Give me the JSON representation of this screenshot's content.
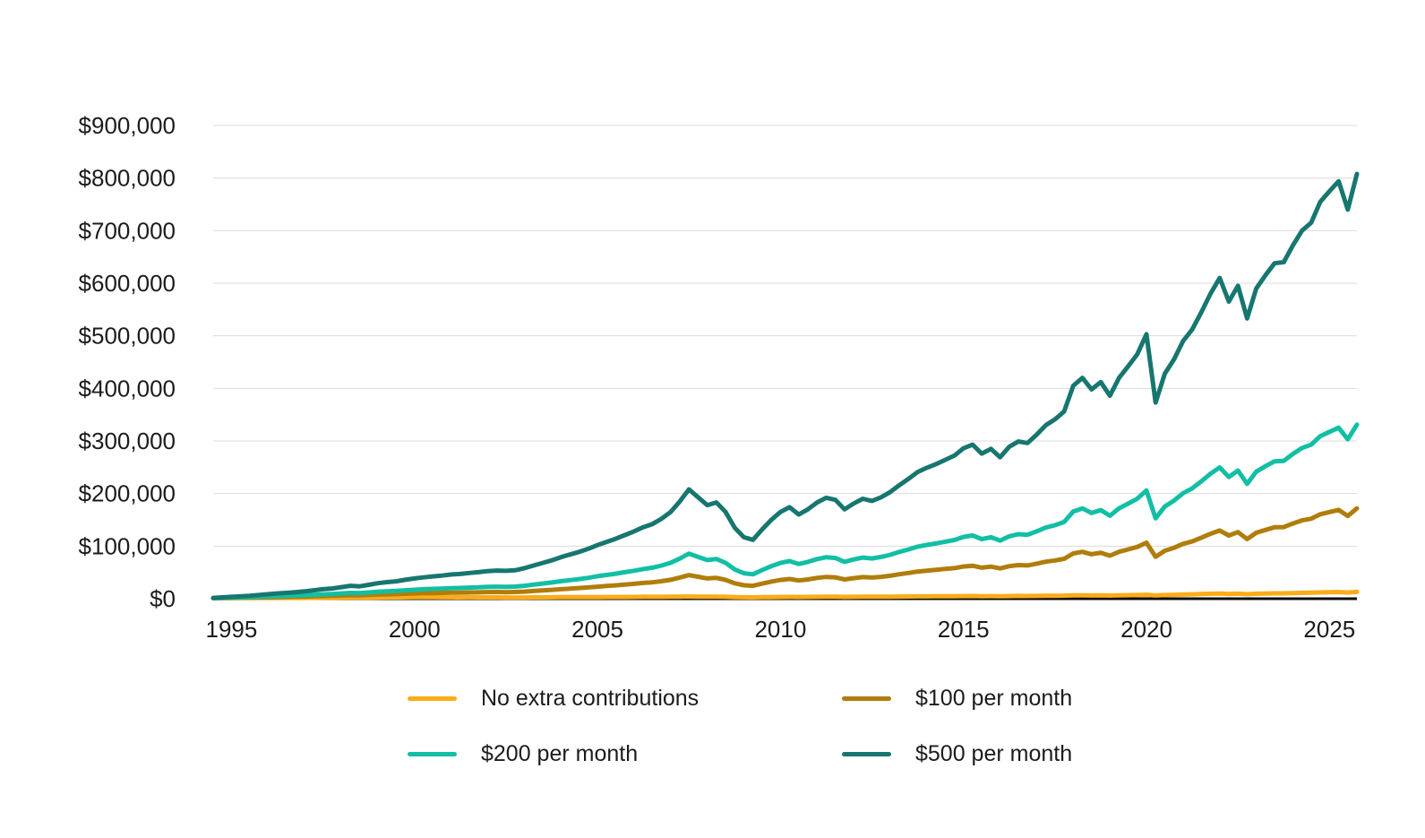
{
  "chart_data": {
    "type": "line",
    "title": "",
    "xlabel": "",
    "ylabel": "",
    "grid": "horizontal",
    "legend_position": "bottom",
    "x_unit": "year",
    "x_start": 1994.5,
    "x_step": 0.25,
    "x_domain": [
      1994.5,
      2025.75
    ],
    "y_domain": [
      0,
      900000
    ],
    "x_ticks": [
      1995,
      2000,
      2005,
      2010,
      2015,
      2020,
      2025
    ],
    "x_tick_labels": [
      "1995",
      "2000",
      "2005",
      "2010",
      "2015",
      "2020",
      "2025"
    ],
    "y_ticks": [
      {
        "value": 0,
        "label": "$0"
      },
      {
        "value": 100000,
        "label": "$100,000"
      },
      {
        "value": 200000,
        "label": "$200,000"
      },
      {
        "value": 300000,
        "label": "$300,000"
      },
      {
        "value": 400000,
        "label": "$400,000"
      },
      {
        "value": 500000,
        "label": "$500,000"
      },
      {
        "value": 600000,
        "label": "$600,000"
      },
      {
        "value": 700000,
        "label": "$700,000"
      },
      {
        "value": 800000,
        "label": "$800,000"
      },
      {
        "value": 900000,
        "label": "$900,000"
      }
    ],
    "colors": {
      "gridline": "#dbdbdb",
      "axis_line": "#0a0a0a",
      "tick_text": "#1c1c1c"
    },
    "series": [
      {
        "name": "No extra contributions",
        "color": "#FBAC18",
        "values": [
          1000,
          1000,
          1100,
          1200,
          1200,
          1300,
          1400,
          1400,
          1500,
          1600,
          1600,
          1700,
          1900,
          1900,
          2000,
          2200,
          2000,
          2200,
          2400,
          2500,
          2600,
          2700,
          2900,
          3000,
          2900,
          2800,
          2700,
          2600,
          2700,
          2500,
          2600,
          2500,
          2400,
          2400,
          2400,
          2500,
          2600,
          2800,
          2900,
          2900,
          3000,
          3000,
          3100,
          3200,
          3200,
          3300,
          3400,
          3500,
          3500,
          3600,
          3800,
          4000,
          4100,
          3900,
          3700,
          3800,
          3500,
          3000,
          2700,
          2600,
          2900,
          3100,
          3300,
          3400,
          3200,
          3400,
          3600,
          3700,
          3700,
          3400,
          3600,
          3700,
          3700,
          3800,
          3900,
          4100,
          4300,
          4400,
          4500,
          4600,
          4700,
          4800,
          5000,
          5100,
          4800,
          5000,
          4700,
          5000,
          5200,
          5100,
          5300,
          5500,
          5600,
          5800,
          6400,
          6500,
          6200,
          6400,
          5900,
          6400,
          6700,
          7000,
          7500,
          6200,
          7000,
          7400,
          7900,
          8300,
          8800,
          9300,
          9700,
          9000,
          9500,
          8500,
          9400,
          9800,
          10200,
          10200,
          10700,
          11100,
          11400,
          12000,
          12300,
          12600,
          11800,
          12900
        ]
      },
      {
        "name": "$100 per month",
        "color": "#B07D0B",
        "values": [
          1100,
          1300,
          1600,
          1900,
          2100,
          2400,
          2800,
          3100,
          3400,
          3800,
          4100,
          4600,
          5100,
          5400,
          6000,
          6700,
          6300,
          7100,
          7800,
          8300,
          8700,
          9400,
          10000,
          10500,
          10800,
          11000,
          11400,
          11500,
          12000,
          12100,
          12600,
          12700,
          12500,
          12700,
          13500,
          14600,
          15700,
          16800,
          18100,
          19100,
          20200,
          21400,
          22900,
          24200,
          25400,
          26800,
          28300,
          30000,
          31200,
          33300,
          36000,
          40200,
          44900,
          41700,
          38600,
          39600,
          35800,
          29400,
          25600,
          24500,
          28700,
          32500,
          35600,
          37500,
          34600,
          36700,
          39500,
          41400,
          40600,
          36700,
          39100,
          41000,
          40200,
          41600,
          43700,
          46500,
          49000,
          51700,
          53400,
          54900,
          56600,
          58200,
          61200,
          62700,
          59000,
          61000,
          57600,
          61800,
          64000,
          63300,
          66600,
          70400,
          72700,
          75800,
          86100,
          89200,
          84600,
          87500,
          81900,
          89100,
          93800,
          98600,
          106600,
          79600,
          91200,
          96900,
          104300,
          109000,
          116000,
          123400,
          129800,
          120200,
          126600,
          113400,
          125500,
          130800,
          135800,
          136200,
          143000,
          148900,
          152100,
          160600,
          164800,
          168900,
          157400,
          171900
        ]
      },
      {
        "name": "$200 per month",
        "color": "#12BFA4",
        "values": [
          1200,
          1600,
          2100,
          2500,
          2900,
          3600,
          4200,
          4800,
          5300,
          6000,
          6600,
          7400,
          8300,
          8900,
          10000,
          11100,
          10600,
          11900,
          13200,
          14100,
          14800,
          16000,
          17100,
          18000,
          18700,
          19300,
          20000,
          20400,
          21200,
          21700,
          22600,
          22900,
          22600,
          23000,
          24600,
          26700,
          28800,
          30900,
          33300,
          35300,
          37400,
          39800,
          42700,
          45100,
          47500,
          50400,
          53200,
          56500,
          58900,
          63000,
          68300,
          76400,
          85700,
          79500,
          73400,
          75500,
          68100,
          55800,
          48400,
          46400,
          54500,
          61900,
          68000,
          71600,
          65900,
          70000,
          75400,
          79000,
          77400,
          70000,
          74600,
          78200,
          76600,
          79500,
          83500,
          88900,
          93800,
          99000,
          102300,
          105200,
          108400,
          111700,
          117400,
          120300,
          113300,
          117000,
          110400,
          118600,
          122700,
          121500,
          128000,
          135300,
          139800,
          145900,
          165800,
          171900,
          162900,
          168600,
          157900,
          171800,
          180800,
          190200,
          205700,
          152900,
          175400,
          186400,
          200700,
          209800,
          223300,
          237600,
          249800,
          231400,
          243700,
          218300,
          241600,
          251900,
          261300,
          262100,
          275200,
          286700,
          292800,
          309200,
          317400,
          325200,
          303100,
          331000
        ]
      },
      {
        "name": "$500 per month",
        "color": "#177670",
        "values": [
          1500,
          2500,
          3500,
          4500,
          5500,
          7000,
          8500,
          10000,
          11000,
          12500,
          14000,
          16000,
          18000,
          19500,
          22000,
          24500,
          23500,
          26500,
          29500,
          31500,
          33000,
          36000,
          38500,
          40500,
          42500,
          44000,
          46000,
          47000,
          49000,
          50500,
          52500,
          53500,
          53000,
          54000,
          58000,
          63000,
          68000,
          73000,
          79000,
          84000,
          89000,
          95000,
          102000,
          108000,
          114000,
          121000,
          128000,
          136000,
          142000,
          152000,
          165000,
          185000,
          208000,
          193000,
          178000,
          183000,
          165000,
          135000,
          117000,
          112000,
          132000,
          150000,
          165000,
          174000,
          160000,
          170000,
          183000,
          192000,
          188000,
          170000,
          181000,
          190000,
          186000,
          193000,
          203000,
          216000,
          228000,
          241000,
          249000,
          256000,
          264000,
          272000,
          286000,
          293000,
          276000,
          285000,
          269000,
          289000,
          299000,
          296000,
          312000,
          330000,
          341000,
          356000,
          405000,
          420000,
          398000,
          412000,
          386000,
          420000,
          442000,
          465000,
          503000,
          373000,
          428000,
          455000,
          490000,
          512000,
          545000,
          580000,
          610000,
          565000,
          595000,
          533000,
          590000,
          615000,
          638000,
          640000,
          672000,
          700000,
          715000,
          755000,
          775000,
          794000,
          740000,
          808000
        ]
      }
    ]
  }
}
